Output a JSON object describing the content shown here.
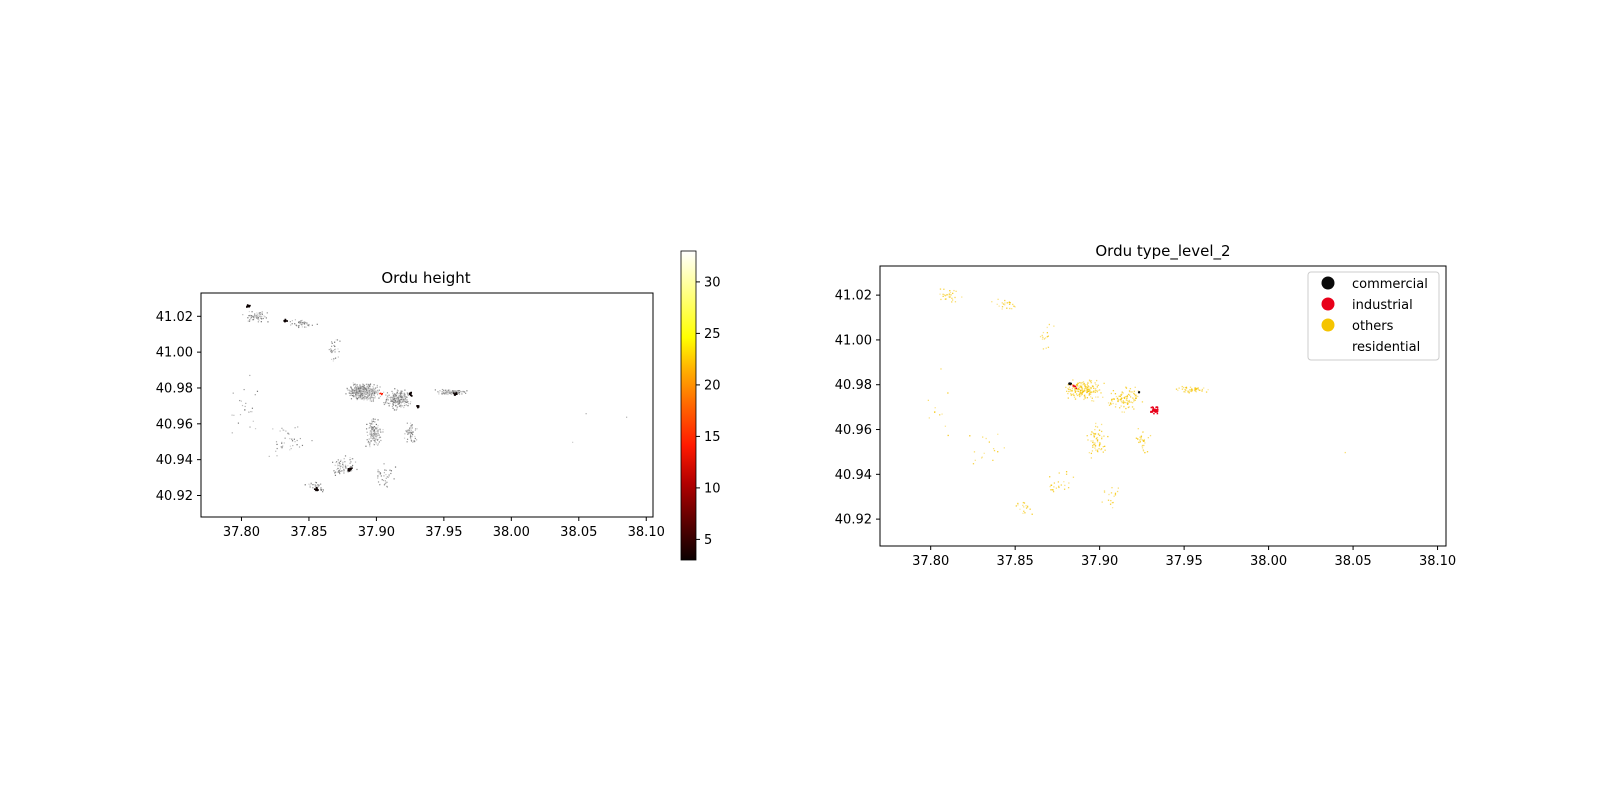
{
  "colors": {
    "cmap_hot": [
      "#0b0000",
      "#5a0000",
      "#b30000",
      "#ff1a00",
      "#ff6600",
      "#ffb300",
      "#ffff00",
      "#ffff80",
      "#ffffff"
    ],
    "commercial": "#0a0a0a",
    "industrial": "#e8001a",
    "others": "#f5c400",
    "residential": "#ffffff",
    "building_gray": "#8a8a8a"
  },
  "chart_data": [
    {
      "type": "map",
      "title": "Ordu height",
      "xlabel": "",
      "ylabel": "",
      "xlim": [
        37.77,
        38.105
      ],
      "ylim": [
        40.908,
        41.033
      ],
      "xticks": [
        37.8,
        37.85,
        37.9,
        37.95,
        38.0,
        38.05,
        38.1
      ],
      "xtick_labels": [
        "37.80",
        "37.85",
        "37.90",
        "37.95",
        "38.00",
        "38.05",
        "38.10"
      ],
      "yticks": [
        40.92,
        40.94,
        40.96,
        40.98,
        41.0,
        41.02
      ],
      "ytick_labels": [
        "40.92",
        "40.94",
        "40.96",
        "40.98",
        "41.00",
        "41.02"
      ],
      "colorbar": {
        "cmap": "hot",
        "range": [
          3,
          33
        ],
        "ticks": [
          5,
          10,
          15,
          20,
          25,
          30
        ],
        "tick_labels": [
          "5",
          "10",
          "15",
          "20",
          "25",
          "30"
        ]
      },
      "tall_building_clusters": [
        {
          "lon": 37.805,
          "lat": 41.026
        },
        {
          "lon": 37.832,
          "lat": 41.018
        },
        {
          "lon": 37.925,
          "lat": 40.977
        },
        {
          "lon": 37.93,
          "lat": 40.97
        },
        {
          "lon": 37.958,
          "lat": 40.977
        },
        {
          "lon": 37.855,
          "lat": 40.924
        },
        {
          "lon": 37.88,
          "lat": 40.935
        }
      ]
    },
    {
      "type": "map",
      "title": "Ordu type_level_2",
      "xlabel": "",
      "ylabel": "",
      "xlim": [
        37.77,
        38.105
      ],
      "ylim": [
        40.908,
        41.033
      ],
      "xticks": [
        37.8,
        37.85,
        37.9,
        37.95,
        38.0,
        38.05,
        38.1
      ],
      "xtick_labels": [
        "37.80",
        "37.85",
        "37.90",
        "37.95",
        "38.00",
        "38.05",
        "38.10"
      ],
      "yticks": [
        40.92,
        40.94,
        40.96,
        40.98,
        41.0,
        41.02
      ],
      "ytick_labels": [
        "40.92",
        "40.94",
        "40.96",
        "40.98",
        "41.00",
        "41.02"
      ],
      "legend_position": "top-right",
      "legend": [
        "commercial",
        "industrial",
        "others",
        "residential"
      ],
      "industrial_clusters": [
        {
          "lon": 37.932,
          "lat": 40.969
        },
        {
          "lon": 37.884,
          "lat": 40.98
        }
      ],
      "commercial_clusters": [
        {
          "lon": 37.923,
          "lat": 40.977
        },
        {
          "lon": 37.882,
          "lat": 40.981
        }
      ]
    }
  ]
}
